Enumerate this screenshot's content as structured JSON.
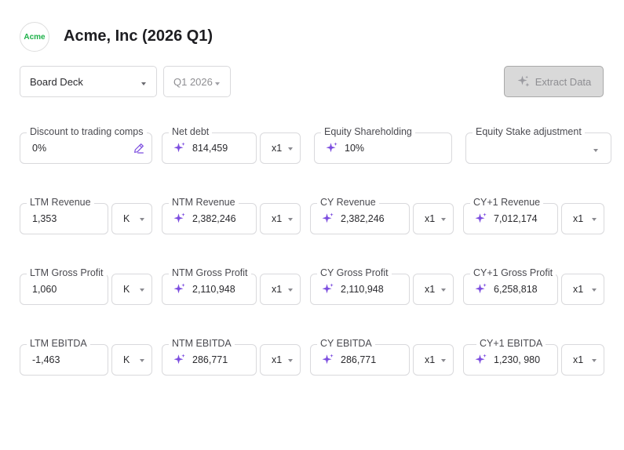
{
  "header": {
    "logo_text": "Acme",
    "title": "Acme, Inc (2026 Q1)"
  },
  "toolbar": {
    "document_select": "Board Deck",
    "period_select": "Q1 2026",
    "extract_button": "Extract Data"
  },
  "colors": {
    "accent_purple": "#7c4ddf",
    "logo_green": "#1fb14a"
  },
  "row1": {
    "discount": {
      "label": "Discount to trading comps",
      "value": "0%"
    },
    "net_debt": {
      "label": "Net debt",
      "value": "814,459",
      "unit": "x1"
    },
    "equity_shareholding": {
      "label": "Equity Shareholding",
      "value": "10%"
    },
    "equity_stake_adjustment": {
      "label": "Equity Stake adjustment",
      "value": ""
    }
  },
  "revenue": {
    "ltm": {
      "label": "LTM Revenue",
      "value": "1,353",
      "unit": "K"
    },
    "ntm": {
      "label": "NTM Revenue",
      "value": "2,382,246",
      "unit": "x1"
    },
    "cy": {
      "label": "CY Revenue",
      "value": "2,382,246",
      "unit": "x1"
    },
    "cy1": {
      "label": "CY+1 Revenue",
      "value": "7,012,174",
      "unit": "x1"
    }
  },
  "gross_profit": {
    "ltm": {
      "label": "LTM Gross Profit",
      "value": "1,060",
      "unit": "K"
    },
    "ntm": {
      "label": "NTM Gross Profit",
      "value": "2,110,948",
      "unit": "x1"
    },
    "cy": {
      "label": "CY Gross Profit",
      "value": "2,110,948",
      "unit": "x1"
    },
    "cy1": {
      "label": "CY+1 Gross Profit",
      "value": "6,258,818",
      "unit": "x1"
    }
  },
  "ebitda": {
    "ltm": {
      "label": "LTM EBITDA",
      "value": "-1,463",
      "unit": "K"
    },
    "ntm": {
      "label": "NTM EBITDA",
      "value": "286,771",
      "unit": "x1"
    },
    "cy": {
      "label": "CY EBITDA",
      "value": "286,771",
      "unit": "x1"
    },
    "cy1": {
      "label": "CY+1 EBITDA",
      "value": "1,230, 980",
      "unit": "x1"
    }
  }
}
